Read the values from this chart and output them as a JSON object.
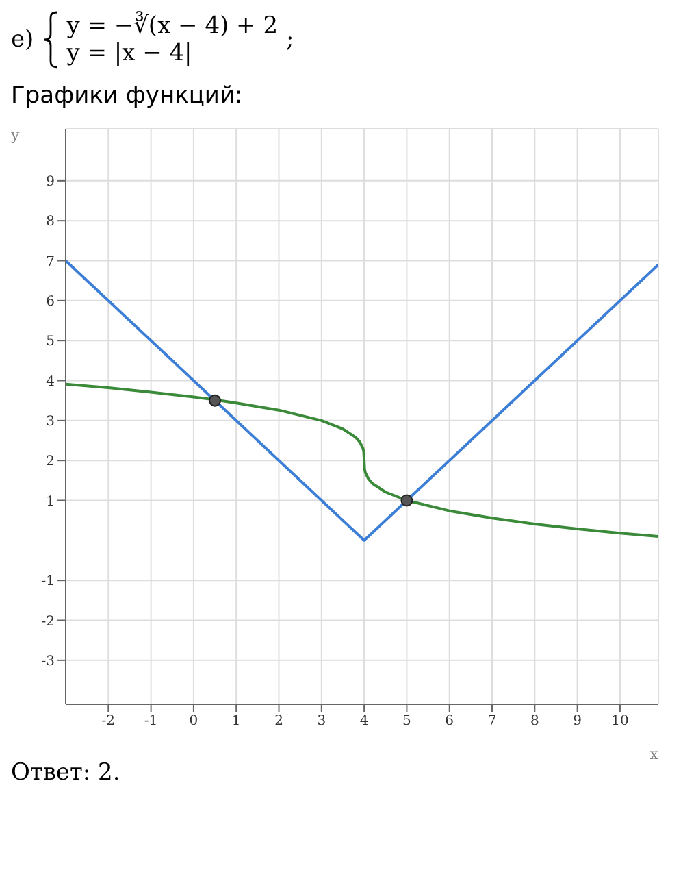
{
  "chart_data": {
    "type": "line",
    "title": "Графики функций:",
    "xlabel": "x",
    "ylabel": "y",
    "annotations": [
      "е)",
      "y = −∛(x − 4) + 2",
      "y = |x − 4|",
      ";",
      "Ответ:  2."
    ],
    "xlim": [
      -3,
      10.9
    ],
    "ylim": [
      -4.1,
      10.3
    ],
    "xticks": [
      -2,
      -1,
      0,
      1,
      2,
      3,
      4,
      5,
      6,
      7,
      8,
      9,
      10
    ],
    "yticks": [
      -3,
      -2,
      -1,
      1,
      2,
      3,
      4,
      5,
      6,
      7,
      8,
      9
    ],
    "grid": true,
    "line_style": "solid",
    "series": [
      {
        "color": "#3d7fd6",
        "marker": "none",
        "x": [
          -3,
          4,
          10.9
        ],
        "values": [
          7,
          0,
          6.9
        ]
      },
      {
        "color": "#3a8a3a",
        "marker": "none",
        "x": [
          -3,
          -2,
          -1,
          0,
          0.5,
          1,
          2,
          3,
          3.5,
          3.8,
          3.9,
          3.97,
          3.99,
          4,
          4.01,
          4.03,
          4.1,
          4.2,
          4.5,
          5,
          6,
          7,
          8,
          9,
          10,
          10.9
        ],
        "values": [
          3.91,
          3.82,
          3.71,
          3.59,
          3.52,
          3.44,
          3.26,
          3.0,
          2.79,
          2.58,
          2.46,
          2.31,
          2.22,
          2,
          1.78,
          1.69,
          1.54,
          1.42,
          1.21,
          1,
          0.74,
          0.56,
          0.41,
          0.29,
          0.18,
          0.1
        ]
      },
      {
        "type": "scatter",
        "color": "#555555",
        "marker": "circle",
        "x": [
          0.5,
          5
        ],
        "values": [
          3.5,
          1
        ]
      }
    ]
  }
}
